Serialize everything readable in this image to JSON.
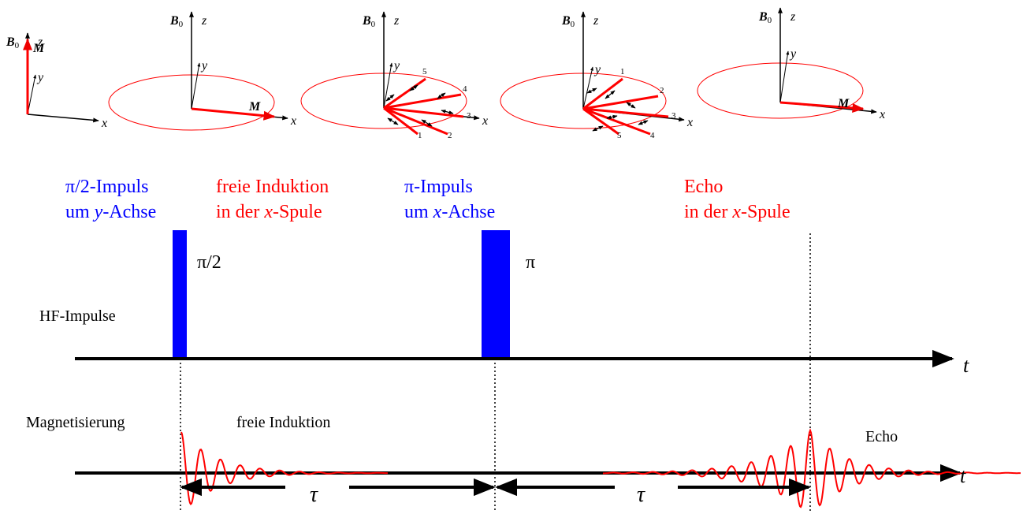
{
  "diagrams": [
    {
      "b0": [
        "B",
        "0"
      ],
      "z": "z",
      "y": "y",
      "x": "x",
      "m": "M"
    },
    {
      "b0": [
        "B",
        "0"
      ],
      "z": "z",
      "y": "y",
      "x": "x",
      "m": "M"
    },
    {
      "b0": [
        "B",
        "0"
      ],
      "z": "z",
      "y": "y",
      "x": "x",
      "numbers": [
        "1",
        "2",
        "3",
        "4",
        "5"
      ]
    },
    {
      "b0": [
        "B",
        "0"
      ],
      "z": "z",
      "y": "y",
      "x": "x",
      "numbers": [
        "1",
        "2",
        "3",
        "4",
        "5"
      ]
    },
    {
      "b0": [
        "B",
        "0"
      ],
      "z": "z",
      "y": "y",
      "x": "x",
      "m": "M"
    }
  ],
  "headings": [
    {
      "line1": "π/2-Impuls",
      "line2": [
        "um ",
        "y",
        "-Achse"
      ]
    },
    {
      "line1": "freie Induktion",
      "line2": [
        "in der ",
        "x",
        "-Spule"
      ]
    },
    {
      "line1": "π-Impuls",
      "line2": [
        "um ",
        "x",
        "-Achse"
      ]
    },
    {
      "line1": "Echo",
      "line2": [
        "in der ",
        "x",
        "-Spule"
      ]
    }
  ],
  "pulses": [
    "π/2",
    "π"
  ],
  "hf_label": "HF-Impulse",
  "hf_axis_label": "t",
  "magnetization_label": "Magnetisierung",
  "fid_label": "freie Induktion",
  "echo_label": "Echo",
  "magnetization_axis_label": "t",
  "tau": [
    "τ",
    "τ"
  ]
}
